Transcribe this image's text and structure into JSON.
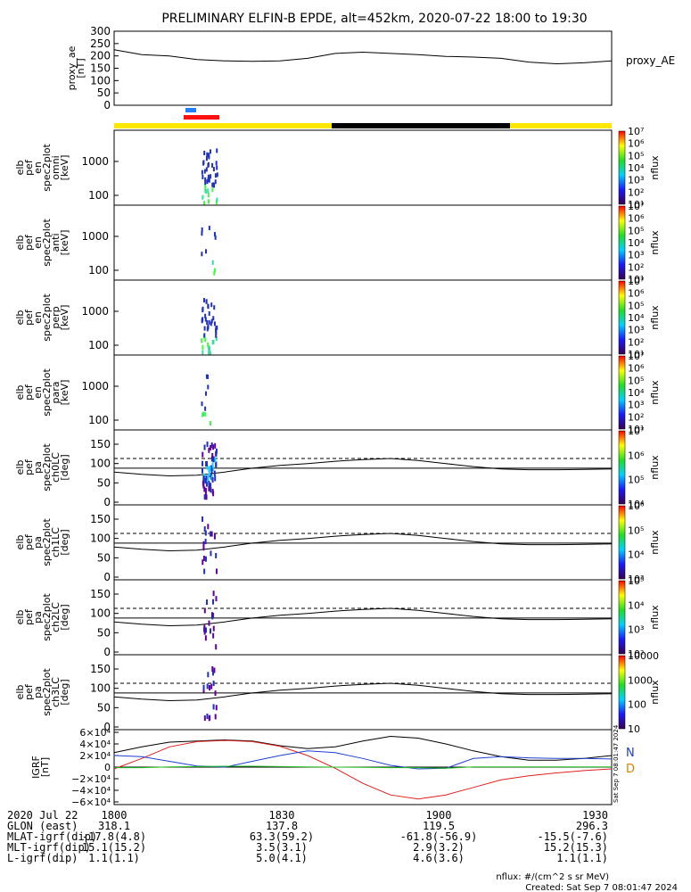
{
  "title": "PRELIMINARY ELFIN-B EPDE, alt=452km, 2020-07-22 18:00 to 19:30",
  "colors": {
    "bar_yellow": "#ffe800",
    "bar_black": "#000000",
    "bar_red": "#ff1010",
    "bar_blue": "#2080ff",
    "trace_black": "#000000",
    "trace_red": "#e02020",
    "trace_blue": "#2040d0",
    "trace_green": "#20c020",
    "label_n": "#2040d0",
    "label_d": "#e08000"
  },
  "chart_data": [
    {
      "type": "line",
      "name": "proxy_ae_panel",
      "ylabel_lines": [
        "proxy_ae",
        "[nT]"
      ],
      "series_label": "proxy_AE",
      "ylim": [
        0,
        300
      ],
      "yticks": [
        "0",
        "50",
        "100",
        "150",
        "200",
        "250",
        "300"
      ],
      "x": [
        0,
        5,
        10,
        15,
        20,
        25,
        30,
        35,
        40,
        45,
        50,
        55,
        60,
        65,
        70,
        75,
        80,
        85,
        90
      ],
      "values": [
        225,
        205,
        200,
        185,
        180,
        178,
        180,
        190,
        210,
        215,
        210,
        205,
        198,
        195,
        190,
        175,
        168,
        172,
        180
      ]
    },
    {
      "type": "heatmap",
      "name": "spec_omni",
      "ylabel_lines": [
        "elb",
        "pef",
        "en",
        "spec2plot",
        "omni",
        "[keV]"
      ],
      "yscale": "log",
      "yticks": [
        "100",
        "1000"
      ],
      "colorbar_ticks": [
        "10¹",
        "10²",
        "10³",
        "10⁴",
        "10⁵",
        "10⁶",
        "10⁷"
      ],
      "colorbar_label": "nflux"
    },
    {
      "type": "heatmap",
      "name": "spec_anti",
      "ylabel_lines": [
        "elb",
        "pef",
        "en",
        "spec2plot",
        "anti",
        "[keV]"
      ],
      "yscale": "log",
      "yticks": [
        "100",
        "1000"
      ],
      "colorbar_ticks": [
        "10¹",
        "10²",
        "10³",
        "10⁴",
        "10⁵",
        "10⁶",
        "10⁷"
      ],
      "colorbar_label": "nflux"
    },
    {
      "type": "heatmap",
      "name": "spec_perp",
      "ylabel_lines": [
        "elb",
        "pef",
        "en",
        "spec2plot",
        "perp",
        "[keV]"
      ],
      "yscale": "log",
      "yticks": [
        "100",
        "1000"
      ],
      "colorbar_ticks": [
        "10¹",
        "10²",
        "10³",
        "10⁴",
        "10⁵",
        "10⁶",
        "10⁷"
      ],
      "colorbar_label": "nflux"
    },
    {
      "type": "heatmap",
      "name": "spec_para",
      "ylabel_lines": [
        "elb",
        "pef",
        "en",
        "spec2plot",
        "para",
        "[keV]"
      ],
      "yscale": "log",
      "yticks": [
        "100",
        "1000"
      ],
      "colorbar_ticks": [
        "10¹",
        "10²",
        "10³",
        "10⁴",
        "10⁵",
        "10⁶",
        "10⁷"
      ],
      "colorbar_label": "nflux"
    },
    {
      "type": "heatmap",
      "name": "pa_ch0",
      "ylabel_lines": [
        "elb",
        "pef",
        "pa",
        "spec2plot",
        "ch0LC",
        "[deg]"
      ],
      "ylim": [
        0,
        180
      ],
      "yticks": [
        "0",
        "50",
        "100",
        "150"
      ],
      "colorbar_ticks": [
        "10⁴",
        "10⁵",
        "10⁶",
        "10⁷"
      ],
      "colorbar_label": "nflux"
    },
    {
      "type": "heatmap",
      "name": "pa_ch1",
      "ylabel_lines": [
        "elb",
        "pef",
        "pa",
        "spec2plot",
        "ch1LC",
        "[deg]"
      ],
      "ylim": [
        0,
        180
      ],
      "yticks": [
        "0",
        "50",
        "100",
        "150"
      ],
      "colorbar_ticks": [
        "10³",
        "10⁴",
        "10⁵",
        "10⁶"
      ],
      "colorbar_label": "nflux"
    },
    {
      "type": "heatmap",
      "name": "pa_ch2",
      "ylabel_lines": [
        "elb",
        "pef",
        "pa",
        "spec2plot",
        "ch2LC",
        "[deg]"
      ],
      "ylim": [
        0,
        180
      ],
      "yticks": [
        "0",
        "50",
        "100",
        "150"
      ],
      "colorbar_ticks": [
        "10²",
        "10³",
        "10⁴",
        "10⁵"
      ],
      "colorbar_label": "nflux"
    },
    {
      "type": "heatmap",
      "name": "pa_ch3",
      "ylabel_lines": [
        "elb",
        "pef",
        "pa",
        "spec2plot",
        "ch3LC",
        "[deg]"
      ],
      "ylim": [
        0,
        180
      ],
      "yticks": [
        "0",
        "50",
        "100",
        "150"
      ],
      "colorbar_ticks": [
        "10",
        "100",
        "1000",
        "10000"
      ],
      "colorbar_label": "nflux"
    },
    {
      "type": "line",
      "name": "igrf_panel",
      "ylabel_lines": [
        "IGRF",
        "[nT]"
      ],
      "ylim": [
        -60000,
        60000
      ],
      "yticks": [
        "−6×10⁴",
        "−4×10⁴",
        "−2×10⁴",
        "0",
        "2×10⁴",
        "4×10⁴",
        "6×10⁴"
      ],
      "legend": [
        "N",
        "D"
      ],
      "stamp": "Sat Sep  7 08:01:47 2024",
      "x": [
        0,
        5,
        10,
        15,
        20,
        25,
        30,
        35,
        40,
        45,
        50,
        55,
        60,
        65,
        70,
        75,
        80,
        85,
        90
      ],
      "series": [
        {
          "name": "black",
          "values": [
            25000,
            35000,
            43000,
            45000,
            47000,
            45000,
            37000,
            32000,
            35000,
            45000,
            53000,
            50000,
            40000,
            28000,
            18000,
            12000,
            12000,
            15000,
            20000
          ]
        },
        {
          "name": "red",
          "values": [
            -3000,
            15000,
            35000,
            44000,
            46000,
            44000,
            36000,
            20000,
            -2000,
            -28000,
            -48000,
            -55000,
            -48000,
            -35000,
            -22000,
            -15000,
            -10000,
            -6000,
            -3000
          ]
        },
        {
          "name": "blue",
          "values": [
            20000,
            18000,
            10000,
            2000,
            0,
            10000,
            20000,
            28000,
            25000,
            15000,
            3000,
            -3000,
            -2000,
            15000,
            18000,
            16000,
            15000,
            15000,
            14000
          ]
        },
        {
          "name": "green",
          "values": [
            -1000,
            -1000,
            500,
            1000,
            1500,
            1500,
            1000,
            500,
            0,
            -500,
            -1000,
            -1000,
            -2000,
            500,
            500,
            500,
            500,
            500,
            500
          ]
        }
      ]
    }
  ],
  "footer": {
    "rows": [
      {
        "label": "2020 Jul 22",
        "values": [
          "1800",
          "1830",
          "1900",
          "1930"
        ]
      },
      {
        "label": "GLON (east)",
        "values": [
          "318.1",
          "137.8",
          "119.5",
          "296.3"
        ]
      },
      {
        "label": "MLAT-igrf(dip)",
        "values": [
          "-17.8(4.8)",
          "63.3(59.2)",
          "-61.8(-56.9)",
          "-15.5(-7.6)"
        ]
      },
      {
        "label": "MLT-igrf(dip)",
        "values": [
          "15.1(15.2)",
          "3.5(3.1)",
          "2.9(3.2)",
          "15.2(15.3)"
        ]
      },
      {
        "label": "L-igrf(dip)",
        "values": [
          "1.1(1.1)",
          "5.0(4.1)",
          "4.6(3.6)",
          "1.1(1.1)"
        ]
      }
    ],
    "units_note": "nflux: #/(cm^2 s sr MeV)",
    "created": "Created: Sat Sep  7 08:01:47 2024"
  }
}
